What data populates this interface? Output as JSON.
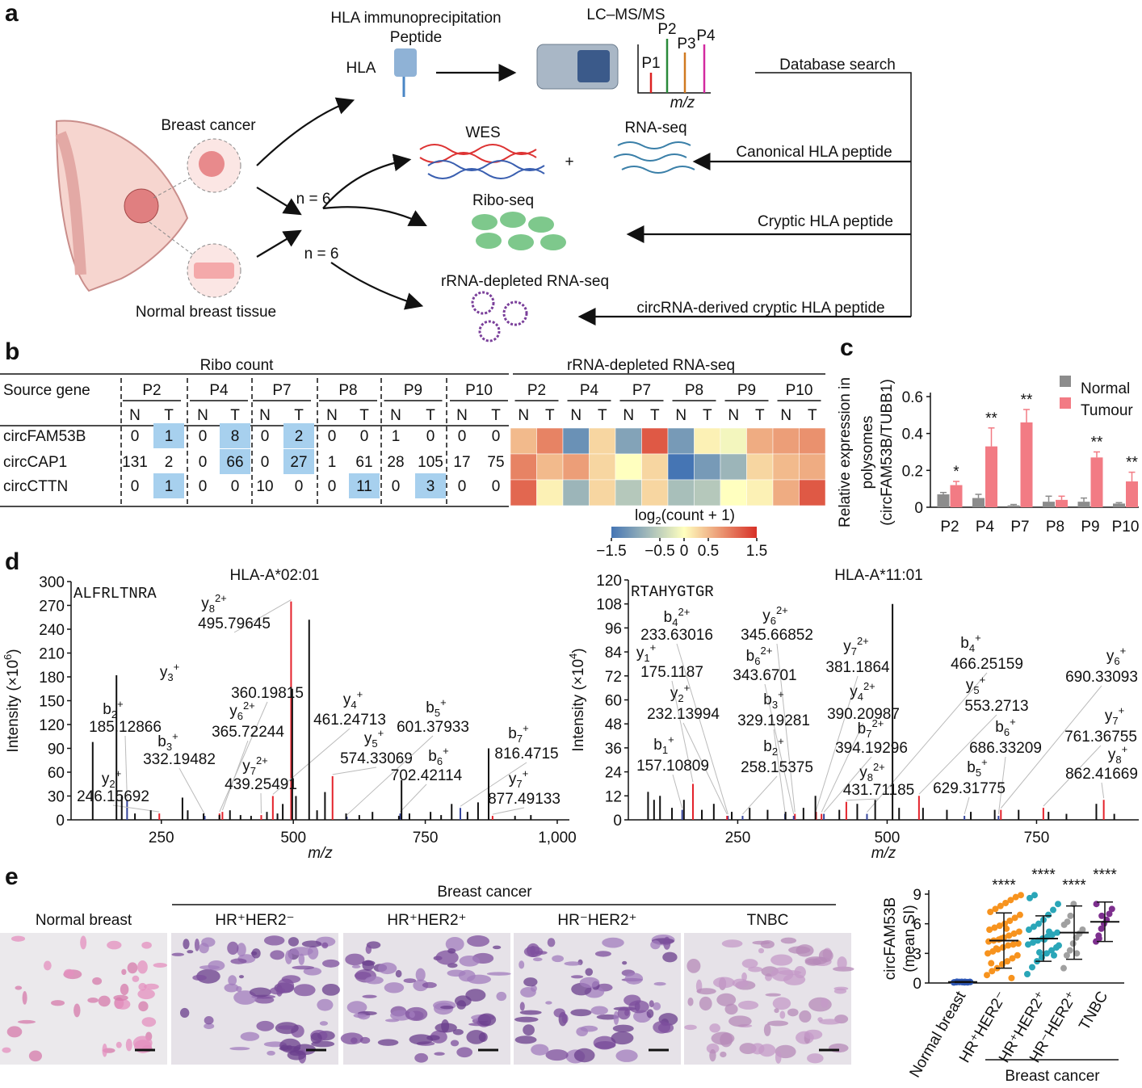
{
  "panel_labels": {
    "a": "a",
    "b": "b",
    "c": "c",
    "d": "d",
    "e": "e"
  },
  "workflow": {
    "hla_ip": "HLA immunoprecipitation",
    "peptide": "Peptide",
    "hla": "HLA",
    "lcms": "LC–MS/MS",
    "peaks": [
      "P1",
      "P2",
      "P3",
      "P4"
    ],
    "mz": "m/z",
    "breast_cancer": "Breast cancer",
    "normal": "Normal breast tissue",
    "n_labels": [
      "n = 6",
      "n = 6"
    ],
    "wes": "WES",
    "rnaseq": "RNA-seq",
    "plus": "+",
    "riboseq": "Ribo-seq",
    "rrna": "rRNA-depleted RNA-seq",
    "db_search": "Database search",
    "canonical": "Canonical HLA peptide",
    "cryptic": "Cryptic HLA peptide",
    "circ": "circRNA-derived cryptic HLA peptide"
  },
  "table": {
    "ribo_header": "Ribo count",
    "rna_header": "rRNA-depleted RNA-seq",
    "source_gene": "Source gene",
    "patients": [
      "P2",
      "P4",
      "P7",
      "P8",
      "P9",
      "P10"
    ],
    "conditions": [
      "N",
      "T"
    ],
    "highlight_color": "#a7d0ee",
    "rows": [
      {
        "gene": "circFAM53B",
        "counts": [
          0,
          1,
          0,
          8,
          0,
          2,
          0,
          0,
          1,
          0,
          0,
          0
        ],
        "highlight": [
          1,
          3,
          5
        ]
      },
      {
        "gene": "circCAP1",
        "counts": [
          131,
          2,
          0,
          66,
          0,
          27,
          1,
          61,
          28,
          105,
          17,
          75
        ],
        "highlight": [
          3,
          5
        ]
      },
      {
        "gene": "circCTTN",
        "counts": [
          0,
          1,
          0,
          0,
          10,
          0,
          0,
          11,
          0,
          3,
          0,
          0
        ],
        "highlight": [
          1,
          7,
          9
        ]
      }
    ]
  },
  "micrographs": {
    "group_label": "Breast cancer",
    "labels": [
      "Normal breast",
      "HR⁺HER2⁻",
      "HR⁺HER2⁺",
      "HR⁻HER2⁺",
      "TNBC"
    ]
  },
  "chart_data": [
    {
      "type": "heatmap",
      "groups": [
        "P2",
        "P4",
        "P7",
        "P8",
        "P9",
        "P10"
      ],
      "conditions": [
        "N",
        "T"
      ],
      "values": [
        [
          0.5,
          0.9,
          -1.2,
          0.3,
          -1.0,
          1.2,
          -1.1,
          0.1,
          -0.1,
          0.6,
          0.7,
          0.8
        ],
        [
          0.9,
          0.5,
          0.7,
          0.3,
          0.0,
          0.3,
          -1.5,
          -1.1,
          -0.8,
          0.3,
          0.5,
          0.6
        ],
        [
          1.1,
          0.1,
          -0.8,
          0.3,
          -0.6,
          0.3,
          -0.7,
          -0.6,
          0.0,
          0.1,
          0.6,
          1.2
        ]
      ],
      "colorbar_label": {
        "base": "log",
        "sub": "2",
        "rest": "(count + 1)"
      },
      "clim": [
        -1.5,
        1.5
      ],
      "cticks": [
        {
          "value": -1.5,
          "label": "−1.5"
        },
        {
          "value": -0.5,
          "label": "−0.5"
        },
        0,
        0.5,
        1.5
      ],
      "colors": [
        "#4575b4",
        "#ffffbf",
        "#d73027"
      ]
    },
    {
      "type": "bar",
      "categories": [
        "P2",
        "P4",
        "P7",
        "P8",
        "P9",
        "P10"
      ],
      "series": [
        {
          "name": "Normal",
          "color": "#8c8c8c",
          "values": [
            0.07,
            0.05,
            0.01,
            0.03,
            0.03,
            0.02
          ],
          "errors": [
            0.01,
            0.02,
            0.005,
            0.03,
            0.02,
            0.005
          ]
        },
        {
          "name": "Tumour",
          "color": "#f27b84",
          "values": [
            0.12,
            0.33,
            0.46,
            0.04,
            0.27,
            0.14
          ],
          "errors": [
            0.02,
            0.1,
            0.07,
            0.02,
            0.03,
            0.05
          ]
        }
      ],
      "ylim": [
        0,
        0.6
      ],
      "yticks": [
        0,
        0.2,
        0.4,
        0.6
      ],
      "ylabel": [
        "Relative expression in",
        "polysomes",
        "(circFAM53B/TUBB1)"
      ],
      "annotations": [
        "*",
        "**",
        "**",
        null,
        "**",
        "**"
      ],
      "legend": "upper right"
    },
    {
      "type": "spectrum",
      "title": "HLA-A*02:01",
      "peptide": "ALFRLTNRA",
      "xlabel": "m/z",
      "ylabel": {
        "base": "Intensity (×10",
        "exp": "6",
        "end": ")"
      },
      "xlim": [
        79,
        1023
      ],
      "ylim": [
        0,
        300
      ],
      "xticks": [
        250,
        500,
        750,
        {
          "value": 1000,
          "label": "1,000"
        }
      ],
      "yticks": [
        0,
        30,
        60,
        90,
        120,
        150,
        180,
        210,
        240,
        270,
        300
      ],
      "ion_colors": {
        "b": "#34449c",
        "y": "#e4222b"
      },
      "peaks": {
        "x": [
          120,
          165,
          175,
          200,
          230,
          290,
          300,
          330,
          360,
          380,
          400,
          420,
          450,
          470,
          480,
          498,
          505,
          530,
          545,
          560,
          600,
          625,
          650,
          700,
          705,
          720,
          760,
          780,
          800,
          830,
          850,
          870,
          920,
          950
        ],
        "values": [
          98,
          182,
          30,
          8,
          12,
          28,
          12,
          8,
          6,
          12,
          6,
          5,
          10,
          8,
          20,
          165,
          30,
          252,
          12,
          35,
          8,
          6,
          10,
          5,
          50,
          8,
          10,
          6,
          20,
          10,
          22,
          90,
          5,
          6
        ]
      },
      "ions": [
        {
          "ion": "y",
          "index": "8",
          "charge": "2+",
          "mz": 495.79645,
          "intensity": 275
        },
        {
          "ion": "y",
          "index": "3",
          "charge": "+",
          "mz": 360.19815,
          "intensity": 8
        },
        {
          "ion": "b",
          "index": "2",
          "charge": "+",
          "mz": 185.12866,
          "intensity": 25
        },
        {
          "ion": "b",
          "index": "3",
          "charge": "+",
          "mz": 332.19482,
          "intensity": 5
        },
        {
          "ion": "y",
          "index": "6",
          "charge": "2+",
          "mz": 365.72244,
          "intensity": 10
        },
        {
          "ion": "y",
          "index": "4",
          "charge": "+",
          "mz": 461.24713,
          "intensity": 30
        },
        {
          "ion": "y",
          "index": "5",
          "charge": "+",
          "mz": 574.33069,
          "intensity": 55
        },
        {
          "ion": "b",
          "index": "5",
          "charge": "+",
          "mz": 601.37933,
          "intensity": 4
        },
        {
          "ion": "b",
          "index": "6",
          "charge": "+",
          "mz": 702.42114,
          "intensity": 8
        },
        {
          "ion": "b",
          "index": "7",
          "charge": "+",
          "mz": 816.4715,
          "intensity": 15
        },
        {
          "ion": "y",
          "index": "7",
          "charge": "2+",
          "mz": 439.25491,
          "intensity": 6
        },
        {
          "ion": "y",
          "index": "2",
          "charge": "+",
          "mz": 246.15692,
          "intensity": 8
        },
        {
          "ion": "y",
          "index": "7",
          "charge": "+",
          "mz": 877.49133,
          "intensity": 5
        }
      ]
    },
    {
      "type": "spectrum",
      "title": "HLA-A*11:01",
      "peptide": "RTAHYGTGR",
      "xlabel": "m/z",
      "ylabel": {
        "base": "Intensity (×10",
        "exp": "4",
        "end": ")"
      },
      "xlim": [
        67,
        921
      ],
      "ylim": [
        0,
        120
      ],
      "xticks": [
        250,
        500,
        750
      ],
      "yticks": [
        0,
        12,
        24,
        36,
        48,
        60,
        72,
        84,
        96,
        108,
        120
      ],
      "ion_colors": {
        "b": "#34449c",
        "y": "#e4222b"
      },
      "peaks": {
        "x": [
          100,
          110,
          120,
          140,
          160,
          190,
          210,
          240,
          270,
          300,
          330,
          360,
          380,
          420,
          450,
          480,
          509,
          520,
          560,
          600,
          640,
          680,
          720,
          770,
          800,
          850,
          880
        ],
        "values": [
          14,
          10,
          12,
          6,
          10,
          5,
          8,
          4,
          6,
          5,
          4,
          6,
          12,
          5,
          8,
          10,
          108,
          6,
          6,
          5,
          4,
          5,
          5,
          4,
          3,
          8,
          3
        ]
      },
      "ions": [
        {
          "ion": "b",
          "index": "4",
          "charge": "2+",
          "mz": 233.63016,
          "intensity": 2
        },
        {
          "ion": "y",
          "index": "6",
          "charge": "2+",
          "mz": 345.66852,
          "intensity": 3
        },
        {
          "ion": "y",
          "index": "1",
          "charge": "+",
          "mz": 175.1187,
          "intensity": 18
        },
        {
          "ion": "b",
          "index": "6",
          "charge": "2+",
          "mz": 343.6701,
          "intensity": 2
        },
        {
          "ion": "y",
          "index": "7",
          "charge": "2+",
          "mz": 381.1864,
          "intensity": 4
        },
        {
          "ion": "b",
          "index": "4",
          "charge": "+",
          "mz": 466.25159,
          "intensity": 3
        },
        {
          "ion": "y",
          "index": "6",
          "charge": "+",
          "mz": 690.33093,
          "intensity": 5
        },
        {
          "ion": "y",
          "index": "2",
          "charge": "+",
          "mz": 232.13994,
          "intensity": 2
        },
        {
          "ion": "b",
          "index": "3",
          "charge": "+",
          "mz": 329.19281,
          "intensity": 3
        },
        {
          "ion": "y",
          "index": "4",
          "charge": "2+",
          "mz": 390.20987,
          "intensity": 3
        },
        {
          "ion": "y",
          "index": "5",
          "charge": "+",
          "mz": 553.2713,
          "intensity": 12
        },
        {
          "ion": "y",
          "index": "7",
          "charge": "+",
          "mz": 761.36755,
          "intensity": 6
        },
        {
          "ion": "b",
          "index": "7",
          "charge": "2+",
          "mz": 394.19296,
          "intensity": 3
        },
        {
          "ion": "b",
          "index": "6",
          "charge": "+",
          "mz": 686.33209,
          "intensity": 2
        },
        {
          "ion": "b",
          "index": "1",
          "charge": "+",
          "mz": 157.10809,
          "intensity": 5
        },
        {
          "ion": "b",
          "index": "2",
          "charge": "+",
          "mz": 258.15375,
          "intensity": 2
        },
        {
          "ion": "y",
          "index": "8",
          "charge": "2+",
          "mz": 431.71185,
          "intensity": 9
        },
        {
          "ion": "b",
          "index": "5",
          "charge": "+",
          "mz": 629.31775,
          "intensity": 2
        },
        {
          "ion": "y",
          "index": "8",
          "charge": "+",
          "mz": 862.41669,
          "intensity": 10
        }
      ]
    },
    {
      "type": "scatter",
      "categories": [
        "Normal breast",
        "HR⁺HER2⁻",
        "HR⁺HER2⁺",
        "HR⁻HER2⁺",
        "TNBC"
      ],
      "colors": [
        "#2d56b3",
        "#f7931e",
        "#2aa6b8",
        "#a0a0a0",
        "#7d2f8e"
      ],
      "points": [
        [
          0.05,
          0.08,
          0.1,
          0.12,
          0.06,
          0.09,
          0.11,
          0.07,
          0.13,
          0.1,
          0.08,
          0.12,
          0.06,
          0.1
        ],
        [
          0.8,
          1.2,
          1.5,
          1.9,
          2.2,
          2.5,
          2.8,
          3.0,
          3.2,
          3.4,
          3.6,
          3.8,
          3.9,
          4.0,
          4.2,
          4.3,
          4.4,
          4.6,
          4.8,
          5.0,
          5.2,
          5.4,
          5.6,
          5.8,
          6.0,
          6.3,
          6.6,
          6.9,
          7.2,
          7.5,
          7.8,
          8.1,
          8.4,
          8.7,
          8.9,
          2.0,
          3.5,
          4.5,
          5.5,
          0.5
        ],
        [
          0.9,
          1.6,
          2.2,
          2.6,
          3.0,
          3.3,
          3.6,
          3.9,
          4.1,
          4.3,
          4.5,
          4.7,
          4.9,
          5.1,
          5.4,
          5.7,
          6.0,
          6.4,
          6.9,
          7.4,
          8.0,
          8.6,
          8.9,
          3.1,
          4.4,
          5.2,
          2.8,
          3.8
        ],
        [
          1.5,
          2.8,
          3.3,
          4.0,
          4.6,
          5.0,
          5.4,
          5.9,
          6.2,
          6.8,
          8.0,
          3.0
        ],
        [
          4.2,
          4.8,
          5.5,
          6.0,
          6.4,
          7.0,
          7.5,
          8.0,
          4.5,
          6.8
        ]
      ],
      "means": [
        0.1,
        4.3,
        4.5,
        5.1,
        6.2
      ],
      "errors": [
        0.05,
        2.8,
        2.3,
        2.7,
        2.0
      ],
      "ylim": [
        0,
        9
      ],
      "yticks": [
        0,
        3,
        6,
        9
      ],
      "ylabel": [
        "circFAM53B",
        "(mean SI)"
      ],
      "annotations": [
        null,
        "****",
        "****",
        "****",
        "****"
      ],
      "group_label": "Breast cancer"
    }
  ]
}
